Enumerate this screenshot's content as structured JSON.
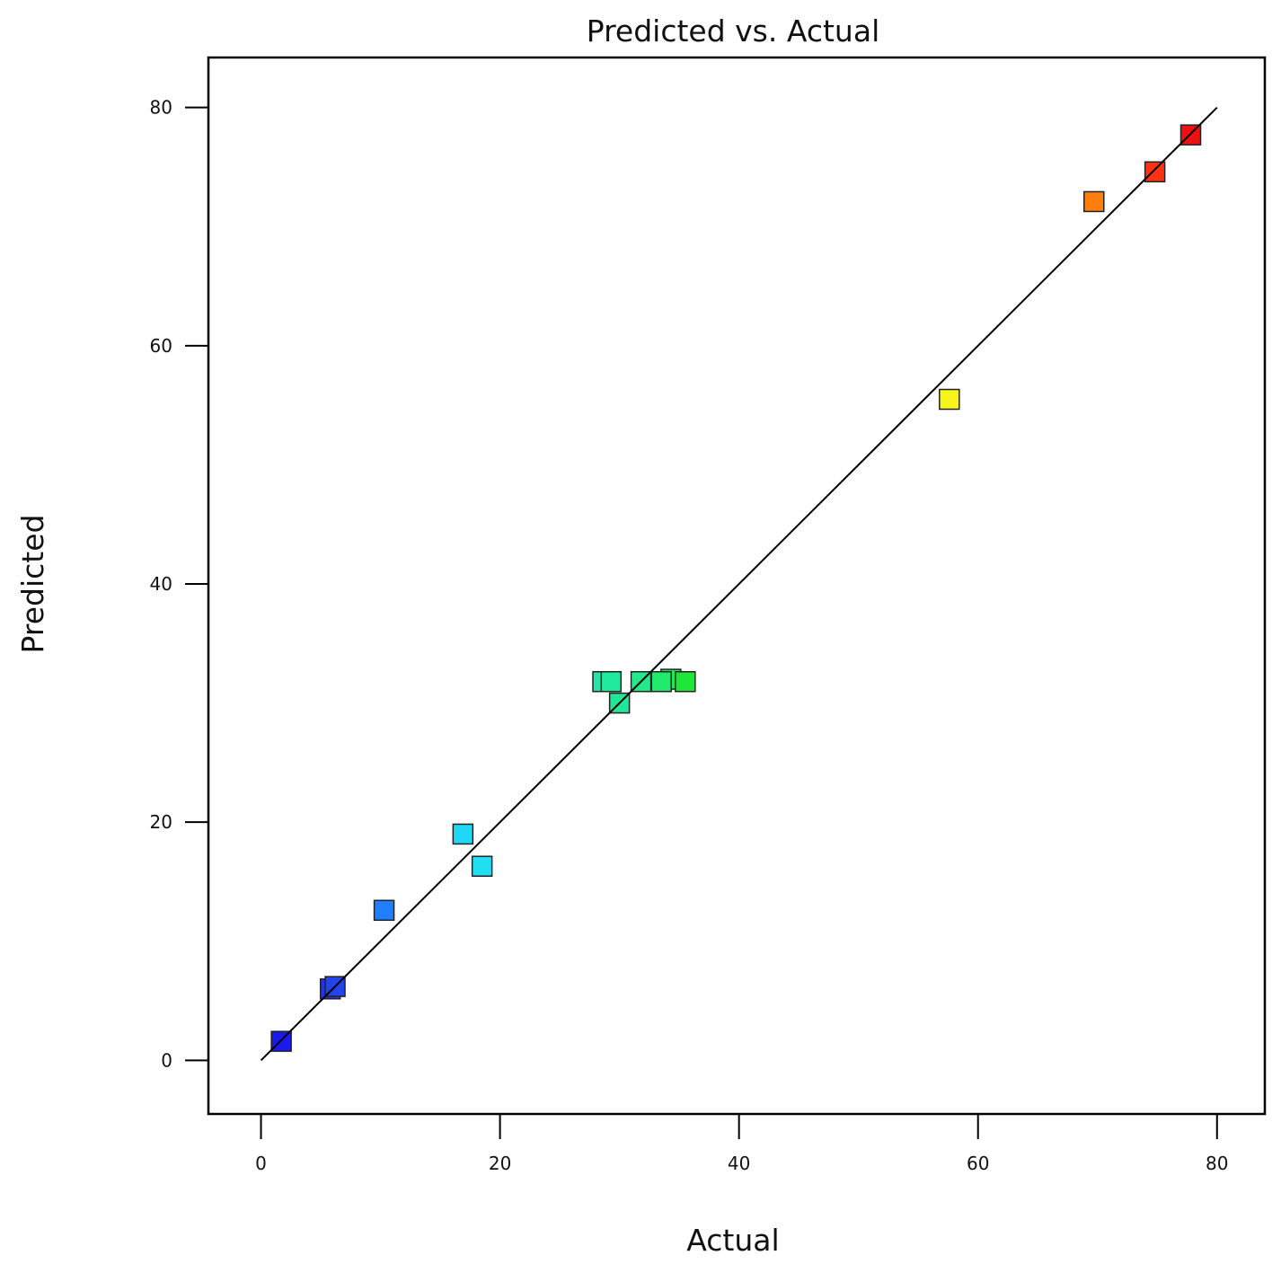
{
  "chart_data": {
    "type": "scatter",
    "title": "Predicted vs. Actual",
    "xlabel": "Actual",
    "ylabel": "Predicted",
    "xlim": [
      -4.4,
      84
    ],
    "ylim": [
      -4.5,
      84.2
    ],
    "xticks": [
      0,
      20,
      40,
      60,
      80
    ],
    "yticks": [
      0,
      20,
      40,
      60,
      80
    ],
    "xtick_labels": [
      "0",
      "20",
      "40",
      "60",
      "80"
    ],
    "ytick_labels": [
      "0",
      "20",
      "40",
      "60",
      "80"
    ],
    "grid": false,
    "legend": "none",
    "reference_line": {
      "x": [
        0,
        80
      ],
      "y": [
        0,
        80
      ]
    },
    "points": [
      {
        "x": 1.7,
        "y": 1.6,
        "color": "#1a1aee"
      },
      {
        "x": 5.8,
        "y": 6.0,
        "color": "#2233ee"
      },
      {
        "x": 6.2,
        "y": 6.2,
        "color": "#2244ee"
      },
      {
        "x": 10.3,
        "y": 12.6,
        "color": "#1f7fff"
      },
      {
        "x": 16.9,
        "y": 19.0,
        "color": "#20d8f5"
      },
      {
        "x": 18.5,
        "y": 16.3,
        "color": "#20dff2"
      },
      {
        "x": 28.6,
        "y": 31.8,
        "color": "#20e8a8"
      },
      {
        "x": 29.3,
        "y": 31.8,
        "color": "#20ea9e"
      },
      {
        "x": 30.0,
        "y": 30.0,
        "color": "#20e899"
      },
      {
        "x": 31.8,
        "y": 31.8,
        "color": "#20ea8a"
      },
      {
        "x": 34.3,
        "y": 32.0,
        "color": "#20ea5c"
      },
      {
        "x": 33.5,
        "y": 31.8,
        "color": "#20ea6a"
      },
      {
        "x": 35.5,
        "y": 31.8,
        "color": "#20e83a"
      },
      {
        "x": 57.6,
        "y": 55.5,
        "color": "#f5f51a"
      },
      {
        "x": 69.7,
        "y": 72.1,
        "color": "#ff7f0e"
      },
      {
        "x": 74.8,
        "y": 74.6,
        "color": "#ff3311"
      },
      {
        "x": 77.8,
        "y": 77.7,
        "color": "#ee1111"
      }
    ]
  }
}
